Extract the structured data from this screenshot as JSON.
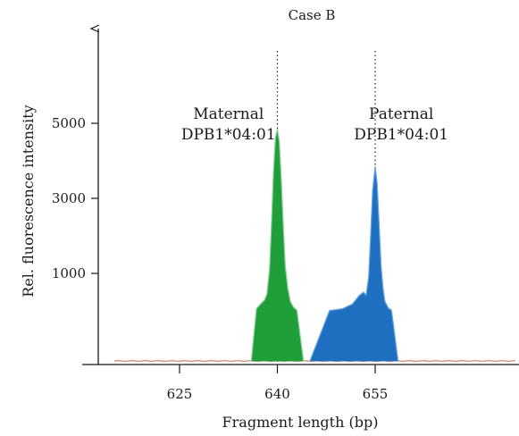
{
  "chart_data": {
    "type": "area",
    "title": "Case B",
    "xlabel": "Fragment length (bp)",
    "ylabel": "Rel. fluorescence intensity",
    "xlim": [
      613,
      677
    ],
    "ylim": [
      -200,
      6600
    ],
    "x_ticks": [
      {
        "value": 625,
        "label": "625"
      },
      {
        "value": 640,
        "label": "640"
      },
      {
        "value": 655,
        "label": "655"
      }
    ],
    "y_ticks": [
      {
        "value": 1000,
        "label": "1000"
      },
      {
        "value": 3000,
        "label": "3000"
      },
      {
        "value": 5000,
        "label": "5000"
      }
    ],
    "reference_lines_x": [
      640,
      655
    ],
    "grid": false,
    "legend": "none",
    "series": [
      {
        "color": "#1f9e3a",
        "x": [
          636.0,
          636.8,
          637.5,
          638.0,
          638.4,
          638.8,
          639.1,
          639.4,
          639.7,
          640.0,
          640.3,
          640.6,
          640.9,
          641.2,
          641.6,
          642.0,
          642.5,
          643.0,
          644.0
        ],
        "y": [
          0,
          60,
          200,
          280,
          450,
          1100,
          2300,
          3700,
          4600,
          4850,
          4500,
          3500,
          2300,
          1200,
          600,
          250,
          90,
          20,
          0
        ]
      },
      {
        "color": "#1f6fc0",
        "x": [
          645.0,
          648.0,
          650.0,
          651.5,
          652.5,
          653.2,
          653.6,
          654.0,
          654.3,
          654.6,
          655.0,
          655.3,
          655.6,
          655.9,
          656.2,
          656.5,
          657.0,
          657.5,
          658.5
        ],
        "y": [
          0,
          10,
          60,
          180,
          400,
          500,
          420,
          900,
          2000,
          3200,
          3850,
          3400,
          2300,
          1200,
          600,
          250,
          80,
          20,
          0
        ]
      }
    ],
    "baseline_color": "#d4a08a",
    "annotations": [
      {
        "lines": [
          "Maternal",
          "DPB1*04:01"
        ],
        "x": 632.5
      },
      {
        "lines": [
          "Paternal",
          "DPB1*04:01"
        ],
        "x": 659.0
      }
    ]
  }
}
